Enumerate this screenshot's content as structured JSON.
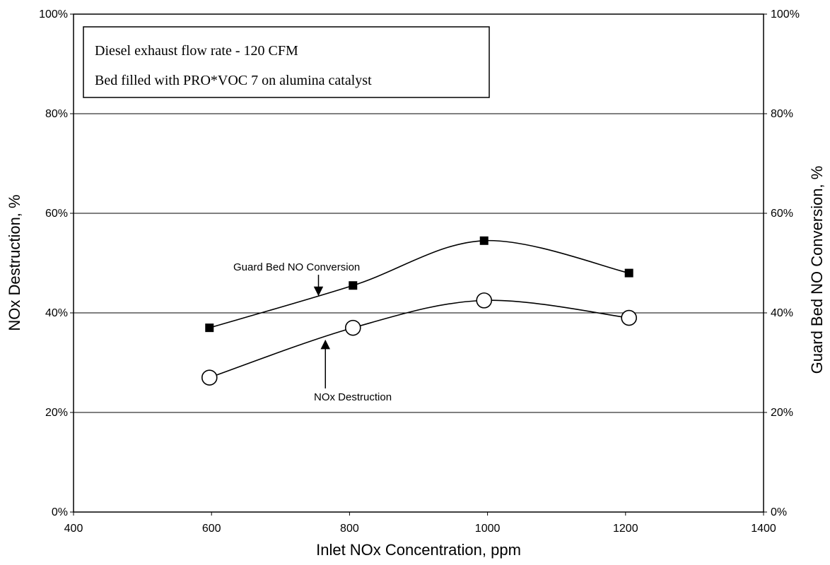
{
  "chart_data": {
    "type": "line",
    "title": "",
    "xlabel": "Inlet NOx Concentration, ppm",
    "ylabel": "NOx Destruction, %",
    "y2label": "Guard Bed NO Conversion, %",
    "xlim": [
      400,
      1400
    ],
    "ylim": [
      0,
      100
    ],
    "y2lim": [
      0,
      100
    ],
    "x_ticks": [
      "400",
      "600",
      "800",
      "1000",
      "1200",
      "1400"
    ],
    "y_ticks": [
      "0%",
      "20%",
      "40%",
      "60%",
      "80%",
      "100%"
    ],
    "y2_ticks": [
      "0%",
      "20%",
      "40%",
      "60%",
      "80%",
      "100%"
    ],
    "grid": "horizontal",
    "series": [
      {
        "name": "Guard Bed NO Conversion",
        "axis": "right",
        "marker": "filled-square",
        "color": "#000000",
        "x": [
          597,
          805,
          995,
          1205
        ],
        "y": [
          37,
          45.5,
          54.5,
          48
        ]
      },
      {
        "name": "NOx Destruction",
        "axis": "left",
        "marker": "open-circle",
        "color": "#000000",
        "x": [
          597,
          805,
          995,
          1205
        ],
        "y": [
          27,
          37,
          42.5,
          39
        ]
      }
    ],
    "annotations": [
      {
        "text": "Guard Bed NO Conversion",
        "target_x": 755,
        "target_y": 43
      },
      {
        "text": "NOx Destruction",
        "target_x": 765,
        "target_y": 35
      }
    ],
    "notes": [
      "Diesel exhaust flow rate - 120 CFM",
      "Bed filled with PRO*VOC 7 on alumina catalyst"
    ]
  }
}
